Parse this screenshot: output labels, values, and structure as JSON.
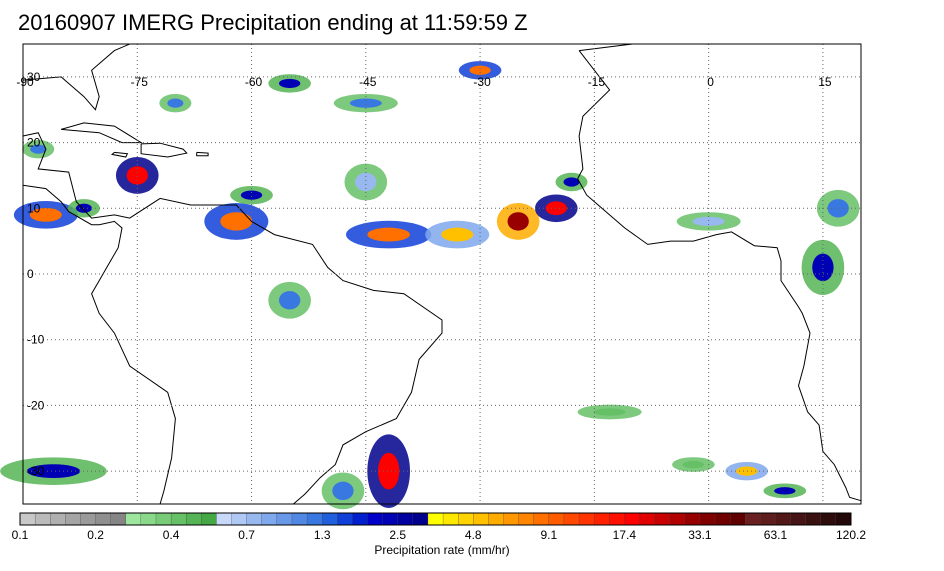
{
  "title": "20160907 IMERG Precipitation ending at 11:59:59 Z",
  "map": {
    "lon_range": [
      -90,
      20
    ],
    "lat_range": [
      -35,
      35
    ],
    "lon_ticks": [
      -90,
      -75,
      -60,
      -45,
      -30,
      -15,
      0,
      15
    ],
    "lon_tick_labels": [
      "-90",
      "-75",
      "-60",
      "-45",
      "-30",
      "-15",
      "0",
      "15"
    ],
    "lat_ticks": [
      30,
      20,
      10,
      0,
      -10,
      -20,
      -30
    ],
    "lat_tick_labels": [
      "30",
      "20",
      "10",
      "0",
      "-10",
      "-20",
      "-30"
    ],
    "grid": "dotted",
    "precip_regions": [
      {
        "lon": -62,
        "lat": 8,
        "rx": 3,
        "ry": 2,
        "rate": 9.1
      },
      {
        "lon": -75,
        "lat": 15,
        "rx": 2,
        "ry": 2,
        "rate": 17.4
      },
      {
        "lon": -87,
        "lat": 9,
        "rx": 3,
        "ry": 1.5,
        "rate": 9.1
      },
      {
        "lon": -82,
        "lat": 10,
        "rx": 1.5,
        "ry": 1,
        "rate": 2.5
      },
      {
        "lon": -42,
        "lat": 6,
        "rx": 4,
        "ry": 1.5,
        "rate": 9.1
      },
      {
        "lon": -33,
        "lat": 6,
        "rx": 3,
        "ry": 1.5,
        "rate": 4.8
      },
      {
        "lon": -25,
        "lat": 8,
        "rx": 2,
        "ry": 2,
        "rate": 33.1
      },
      {
        "lon": -20,
        "lat": 10,
        "rx": 2,
        "ry": 1.5,
        "rate": 17.4
      },
      {
        "lon": -60,
        "lat": 12,
        "rx": 2,
        "ry": 1,
        "rate": 2.5
      },
      {
        "lon": -55,
        "lat": 29,
        "rx": 2,
        "ry": 1,
        "rate": 2.5
      },
      {
        "lon": -45,
        "lat": 26,
        "rx": 3,
        "ry": 1,
        "rate": 1.3
      },
      {
        "lon": -30,
        "lat": 31,
        "rx": 2,
        "ry": 1,
        "rate": 9.1
      },
      {
        "lon": -45,
        "lat": 14,
        "rx": 2,
        "ry": 2,
        "rate": 0.7
      },
      {
        "lon": -55,
        "lat": -4,
        "rx": 2,
        "ry": 2,
        "rate": 1.3
      },
      {
        "lon": -42,
        "lat": -30,
        "rx": 2,
        "ry": 4,
        "rate": 17.4
      },
      {
        "lon": -48,
        "lat": -33,
        "rx": 2,
        "ry": 2,
        "rate": 1.3
      },
      {
        "lon": -86,
        "lat": -30,
        "rx": 5,
        "ry": 1.5,
        "rate": 2.5
      },
      {
        "lon": 5,
        "lat": -30,
        "rx": 2,
        "ry": 1,
        "rate": 4.8
      },
      {
        "lon": 10,
        "lat": -33,
        "rx": 2,
        "ry": 0.8,
        "rate": 2.5
      },
      {
        "lon": 15,
        "lat": 1,
        "rx": 2,
        "ry": 3,
        "rate": 2.5
      },
      {
        "lon": 17,
        "lat": 10,
        "rx": 2,
        "ry": 2,
        "rate": 1.3
      },
      {
        "lon": 0,
        "lat": 8,
        "rx": 3,
        "ry": 1,
        "rate": 0.7
      },
      {
        "lon": -70,
        "lat": 26,
        "rx": 1.5,
        "ry": 1,
        "rate": 1.3
      },
      {
        "lon": -88,
        "lat": 19,
        "rx": 1.5,
        "ry": 1,
        "rate": 1.3
      },
      {
        "lon": -18,
        "lat": 14,
        "rx": 1.5,
        "ry": 1,
        "rate": 2.5
      },
      {
        "lon": -13,
        "lat": -21,
        "rx": 3,
        "ry": 0.8,
        "rate": 0.4
      },
      {
        "lon": -2,
        "lat": -29,
        "rx": 2,
        "ry": 0.8,
        "rate": 0.4
      }
    ]
  },
  "colorbar": {
    "label": "Precipitation rate (mm/hr)",
    "tick_labels": [
      "0.1",
      "0.2",
      "0.4",
      "0.7",
      "1.3",
      "2.5",
      "4.8",
      "9.1",
      "17.4",
      "33.1",
      "63.1",
      "120.2"
    ],
    "colors": [
      "#c8c8c8",
      "#bbbbbb",
      "#b0b0b0",
      "#a5a5a5",
      "#9a9a9a",
      "#8f8f8f",
      "#858585",
      "#9ee59e",
      "#8ad98a",
      "#78cc78",
      "#66c066",
      "#55b455",
      "#44a844",
      "#c8d8f8",
      "#b0c8f4",
      "#98b8f0",
      "#80a8ec",
      "#6898e8",
      "#5088e4",
      "#3878e0",
      "#2060dc",
      "#1040d8",
      "#0020d0",
      "#0000c8",
      "#0000b4",
      "#0000a0",
      "#00008c",
      "#ffff00",
      "#ffe800",
      "#ffd400",
      "#ffc000",
      "#ffac00",
      "#ff9800",
      "#ff8400",
      "#ff7000",
      "#ff5c00",
      "#ff4800",
      "#ff3400",
      "#ff2000",
      "#ff1000",
      "#ff0000",
      "#e00000",
      "#c80000",
      "#b00000",
      "#980000",
      "#800000",
      "#700000",
      "#600000",
      "#6a2020",
      "#5e1c1c",
      "#521818",
      "#461414",
      "#3a1010",
      "#2e0c0c",
      "#220808"
    ]
  }
}
